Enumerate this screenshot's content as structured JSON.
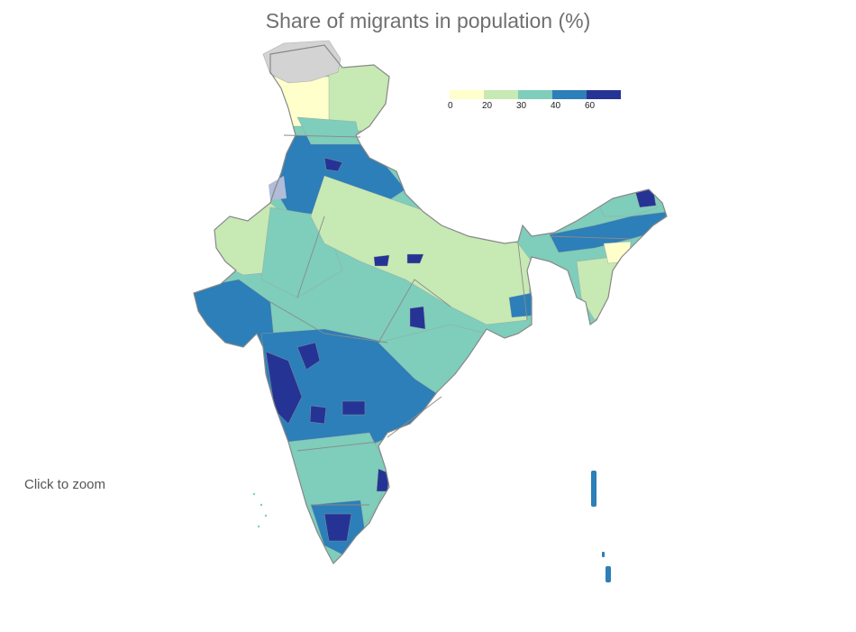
{
  "title": "Share of migrants in population (%)",
  "hint": "Click to zoom",
  "legend": {
    "colors": [
      "#ffffcc",
      "#c7e9b4",
      "#7fcdbb",
      "#2c7fb8",
      "#253494"
    ],
    "ticks": [
      "0",
      "20",
      "30",
      "40",
      "60"
    ]
  },
  "map": {
    "region": "India",
    "no_data_color": "#d3d3d3",
    "border_color": "#888888"
  }
}
